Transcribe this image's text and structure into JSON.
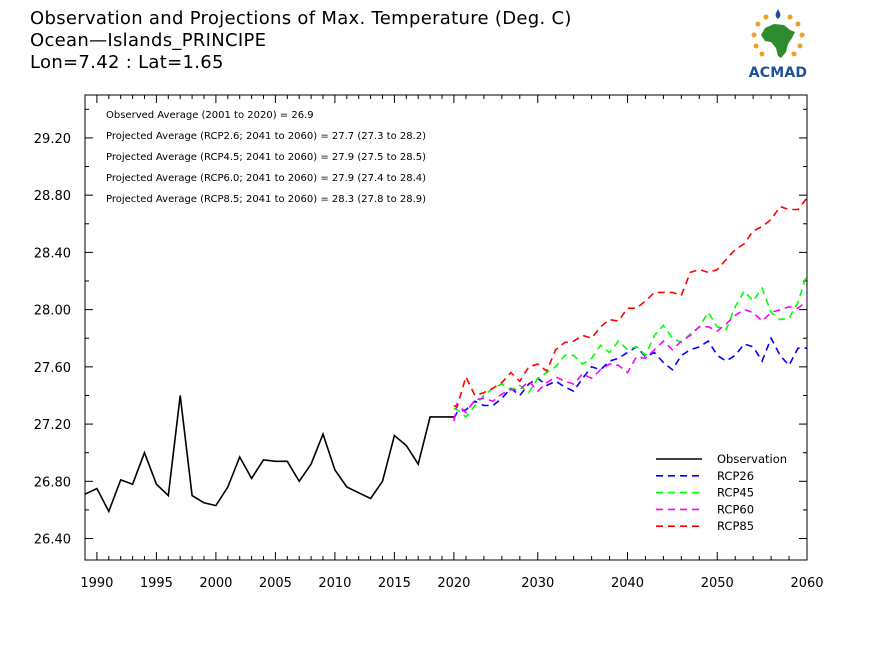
{
  "title_lines": [
    "Observation and Projections of Max. Temperature (Deg. C)",
    "Ocean—Islands_PRINCIPE",
    "Lon=7.42 : Lat=1.65"
  ],
  "logo": {
    "text": "ACMAD",
    "icon": "africa-map-sun-icon",
    "colors": {
      "blue": "#1d4f9c",
      "green": "#2e8b2e",
      "orange": "#f0a020"
    }
  },
  "annotations": [
    "Observed Average (2001 to 2020) = 26.9",
    "Projected Average (RCP2.6; 2041 to 2060) = 27.7 (27.3 to 28.2)",
    "Projected Average (RCP4.5; 2041 to 2060) = 27.9 (27.5 to 28.5)",
    "Projected Average (RCP6.0; 2041 to 2060) = 27.9 (27.4 to 28.4)",
    "Projected Average (RCP8.5; 2041 to 2060) = 28.3 (27.8 to 28.9)"
  ],
  "chart_data": {
    "type": "line",
    "title": "Observation and Projections of Max. Temperature (Deg. C)",
    "ylim": [
      26.25,
      29.5
    ],
    "y_ticks": [
      26.4,
      26.8,
      27.2,
      27.6,
      28.0,
      28.4,
      28.8,
      29.2
    ],
    "y_tick_labels": [
      "26.40",
      "26.80",
      "27.20",
      "27.60",
      "28.00",
      "28.40",
      "28.80",
      "29.20"
    ],
    "x_ticks": [
      1990,
      1995,
      2000,
      2005,
      2010,
      2015,
      2020,
      2030,
      2040,
      2050,
      2060
    ],
    "x_tick_labels": [
      "1990",
      "1995",
      "2000",
      "2005",
      "2010",
      "2015",
      "2020",
      "2030",
      "2040",
      "2050",
      "2060"
    ],
    "legend_position": "bottom-right",
    "grid": false,
    "series": [
      {
        "name": "Observation",
        "color": "#000000",
        "dashed": false,
        "x": [
          1989,
          1990,
          1991,
          1992,
          1993,
          1994,
          1995,
          1996,
          1997,
          1998,
          1999,
          2000,
          2001,
          2002,
          2003,
          2004,
          2005,
          2006,
          2007,
          2008,
          2009,
          2010,
          2011,
          2012,
          2013,
          2014,
          2015,
          2016,
          2017,
          2018,
          2019,
          2020
        ],
        "y": [
          26.71,
          26.75,
          26.59,
          26.81,
          26.78,
          27.0,
          26.78,
          26.7,
          27.4,
          26.7,
          26.65,
          26.63,
          26.76,
          26.97,
          26.82,
          26.95,
          26.94,
          26.94,
          26.8,
          26.92,
          27.13,
          26.88,
          26.76,
          26.72,
          26.68,
          26.8,
          27.12,
          27.05,
          26.92,
          27.25,
          27.25,
          27.25
        ]
      },
      {
        "name": "RCP26",
        "color": "#0000ff",
        "dashed": true,
        "x": [
          2020,
          2021,
          2022,
          2023,
          2024,
          2025,
          2026,
          2027,
          2028,
          2029,
          2030,
          2031,
          2032,
          2033,
          2034,
          2035,
          2036,
          2037,
          2038,
          2039,
          2040,
          2041,
          2042,
          2043,
          2044,
          2045,
          2046,
          2047,
          2048,
          2049,
          2050,
          2051,
          2052,
          2053,
          2054,
          2055,
          2056,
          2057,
          2058,
          2059,
          2060
        ],
        "y": [
          27.24,
          27.28,
          27.3,
          27.36,
          27.33,
          27.33,
          27.38,
          27.45,
          27.4,
          27.48,
          27.52,
          27.47,
          27.5,
          27.46,
          27.43,
          27.52,
          27.6,
          27.58,
          27.64,
          27.66,
          27.7,
          27.74,
          27.67,
          27.7,
          27.63,
          27.58,
          27.68,
          27.72,
          27.74,
          27.78,
          27.68,
          27.64,
          27.68,
          27.76,
          27.74,
          27.64,
          27.8,
          27.68,
          27.61,
          27.73,
          27.73
        ]
      },
      {
        "name": "RCP45",
        "color": "#00ff00",
        "dashed": true,
        "x": [
          2020,
          2021,
          2022,
          2023,
          2024,
          2025,
          2026,
          2027,
          2028,
          2029,
          2030,
          2031,
          2032,
          2033,
          2034,
          2035,
          2036,
          2037,
          2038,
          2039,
          2040,
          2041,
          2042,
          2043,
          2044,
          2045,
          2046,
          2047,
          2048,
          2049,
          2050,
          2051,
          2052,
          2053,
          2054,
          2055,
          2056,
          2057,
          2058,
          2059,
          2060
        ],
        "y": [
          27.31,
          27.3,
          27.25,
          27.33,
          27.4,
          27.45,
          27.48,
          27.44,
          27.47,
          27.42,
          27.52,
          27.56,
          27.6,
          27.68,
          27.68,
          27.62,
          27.66,
          27.75,
          27.7,
          27.78,
          27.72,
          27.74,
          27.68,
          27.82,
          27.89,
          27.8,
          27.77,
          27.83,
          27.88,
          27.98,
          27.88,
          27.86,
          28.02,
          28.13,
          28.06,
          28.15,
          27.98,
          27.93,
          27.94,
          28.05,
          28.25
        ]
      },
      {
        "name": "RCP60",
        "color": "#ff00ff",
        "dashed": true,
        "x": [
          2020,
          2021,
          2022,
          2023,
          2024,
          2025,
          2026,
          2027,
          2028,
          2029,
          2030,
          2031,
          2032,
          2033,
          2034,
          2035,
          2036,
          2037,
          2038,
          2039,
          2040,
          2041,
          2042,
          2043,
          2044,
          2045,
          2046,
          2047,
          2048,
          2049,
          2050,
          2051,
          2052,
          2053,
          2054,
          2055,
          2056,
          2057,
          2058,
          2059,
          2060
        ],
        "y": [
          27.22,
          27.34,
          27.28,
          27.37,
          27.38,
          27.36,
          27.41,
          27.44,
          27.44,
          27.5,
          27.43,
          27.49,
          27.53,
          27.5,
          27.48,
          27.55,
          27.52,
          27.58,
          27.62,
          27.61,
          27.56,
          27.67,
          27.66,
          27.72,
          27.78,
          27.72,
          27.78,
          27.82,
          27.88,
          27.88,
          27.85,
          27.9,
          27.96,
          28.0,
          27.98,
          27.92,
          27.98,
          28.0,
          28.02,
          28.01,
          28.06
        ]
      },
      {
        "name": "RCP85",
        "color": "#ff0000",
        "dashed": true,
        "x": [
          2020,
          2021,
          2022,
          2023,
          2024,
          2025,
          2026,
          2027,
          2028,
          2029,
          2030,
          2031,
          2032,
          2033,
          2034,
          2035,
          2036,
          2037,
          2038,
          2039,
          2040,
          2041,
          2042,
          2043,
          2044,
          2045,
          2046,
          2047,
          2048,
          2049,
          2050,
          2051,
          2052,
          2053,
          2054,
          2055,
          2056,
          2057,
          2058,
          2059,
          2060
        ],
        "y": [
          27.33,
          27.32,
          27.53,
          27.4,
          27.42,
          27.45,
          27.49,
          27.56,
          27.5,
          27.6,
          27.62,
          27.57,
          27.72,
          27.77,
          27.78,
          27.82,
          27.8,
          27.88,
          27.93,
          27.92,
          28.01,
          28.01,
          28.06,
          28.12,
          28.12,
          28.12,
          28.1,
          28.26,
          28.28,
          28.26,
          28.28,
          28.35,
          28.42,
          28.46,
          28.55,
          28.58,
          28.63,
          28.72,
          28.7,
          28.7,
          28.78
        ]
      }
    ]
  }
}
